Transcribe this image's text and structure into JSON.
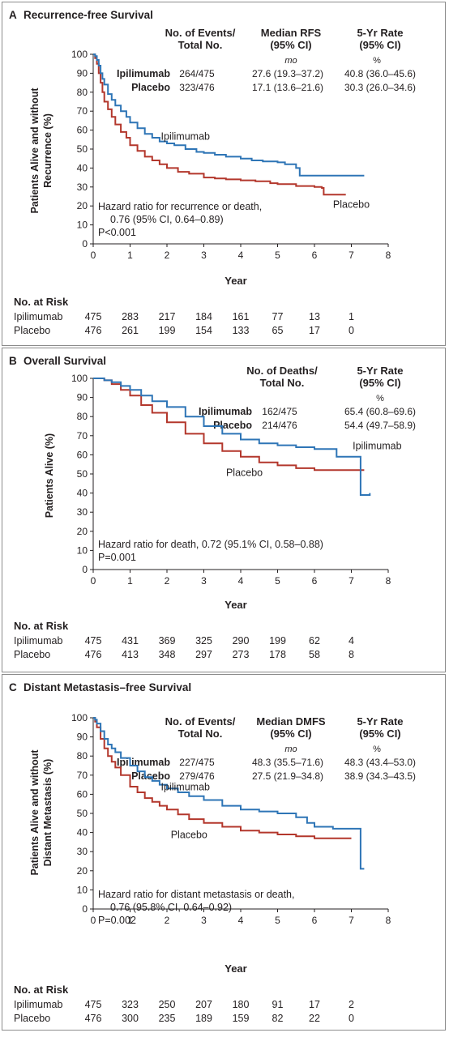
{
  "chart_data": [
    {
      "type": "line",
      "panel_letter": "A",
      "title": "Recurrence-free Survival",
      "ylabel": [
        "Patients Alive and without",
        "Recurrence (%)"
      ],
      "xlabel": "Year",
      "xlim": [
        0,
        8
      ],
      "ylim": [
        0,
        100
      ],
      "x_ticks": [
        "0",
        "1",
        "2",
        "3",
        "4",
        "5",
        "6",
        "7",
        "8"
      ],
      "y_ticks": [
        "0",
        "10",
        "20",
        "30",
        "40",
        "50",
        "60",
        "70",
        "80",
        "90",
        "100"
      ],
      "table_headers": [
        [
          "No. of Events/",
          "Total No."
        ],
        [
          "Median RFS",
          "(95% CI)"
        ],
        [
          "5-Yr Rate",
          "(95% CI)"
        ]
      ],
      "table_units": [
        "mo",
        "%"
      ],
      "table_rows": [
        {
          "group": "Ipilimumab",
          "events": "264/475",
          "median": "27.6 (19.3–37.2)",
          "rate": "40.8 (36.0–45.6)"
        },
        {
          "group": "Placebo",
          "events": "323/476",
          "median": "17.1 (13.6–21.6)",
          "rate": "30.3 (26.0–34.6)"
        }
      ],
      "curve_labels": [
        {
          "text": "Ipilimumab",
          "x": 2.5,
          "y": 55
        },
        {
          "text": "Placebo",
          "x": 7.0,
          "y": 19
        }
      ],
      "annotation": [
        "Hazard ratio for recurrence or death,",
        "0.76 (95% CI, 0.64–0.89)",
        "P<0.001"
      ],
      "series": [
        {
          "name": "Ipilimumab",
          "color": "#2e75b6",
          "x": [
            0,
            0.05,
            0.1,
            0.15,
            0.2,
            0.25,
            0.3,
            0.4,
            0.5,
            0.6,
            0.75,
            0.9,
            1.0,
            1.2,
            1.4,
            1.6,
            1.8,
            2.0,
            2.2,
            2.5,
            2.8,
            3.0,
            3.3,
            3.6,
            4.0,
            4.3,
            4.6,
            5.0,
            5.2,
            5.5,
            5.6,
            6.0,
            6.5,
            7.0,
            7.35
          ],
          "y": [
            100,
            99,
            97,
            94,
            90,
            87,
            84,
            79,
            76,
            73,
            70,
            67,
            64,
            61,
            58,
            56,
            54,
            53,
            52,
            50,
            48.5,
            48,
            47,
            46,
            45,
            44,
            43.5,
            43,
            42,
            40,
            36,
            36,
            36,
            36,
            36
          ]
        },
        {
          "name": "Placebo",
          "color": "#b3372c",
          "x": [
            0,
            0.05,
            0.1,
            0.15,
            0.2,
            0.25,
            0.3,
            0.4,
            0.5,
            0.6,
            0.75,
            0.9,
            1.0,
            1.2,
            1.4,
            1.6,
            1.8,
            2.0,
            2.3,
            2.6,
            3.0,
            3.3,
            3.6,
            4.0,
            4.4,
            4.8,
            5.0,
            5.5,
            6.0,
            6.2,
            6.25,
            6.6,
            6.85
          ],
          "y": [
            100,
            98,
            95,
            90,
            85,
            80,
            75,
            71,
            67,
            63,
            59,
            56,
            52,
            49,
            46,
            44,
            42,
            40,
            38,
            37,
            35,
            34.5,
            34,
            33.5,
            33,
            32,
            31.5,
            30.5,
            30,
            29.5,
            26,
            26,
            26
          ]
        }
      ],
      "risk_title": "No. at Risk",
      "risk_rows": [
        {
          "group": "Ipilimumab",
          "values": [
            "475",
            "283",
            "217",
            "184",
            "161",
            "77",
            "13",
            "1"
          ]
        },
        {
          "group": "Placebo",
          "values": [
            "476",
            "261",
            "199",
            "154",
            "133",
            "65",
            "17",
            "0"
          ]
        }
      ]
    },
    {
      "type": "line",
      "panel_letter": "B",
      "title": "Overall Survival",
      "ylabel": [
        "Patients Alive (%)"
      ],
      "xlabel": "Year",
      "xlim": [
        0,
        8
      ],
      "ylim": [
        0,
        100
      ],
      "x_ticks": [
        "0",
        "1",
        "2",
        "3",
        "4",
        "5",
        "6",
        "7",
        "8"
      ],
      "y_ticks": [
        "0",
        "10",
        "20",
        "30",
        "40",
        "50",
        "60",
        "70",
        "80",
        "90",
        "100"
      ],
      "table_headers": [
        [
          "No. of Deaths/",
          "Total No."
        ],
        [
          "5-Yr Rate",
          "(95% CI)"
        ]
      ],
      "table_units": [
        "%"
      ],
      "table_rows": [
        {
          "group": "Ipilimumab",
          "events": "162/475",
          "rate": "65.4 (60.8–69.6)"
        },
        {
          "group": "Placebo",
          "events": "214/476",
          "rate": "54.4 (49.7–58.9)"
        }
      ],
      "curve_labels": [
        {
          "text": "Ipilimumab",
          "x": 7.7,
          "y": 63
        },
        {
          "text": "Placebo",
          "x": 4.1,
          "y": 49
        }
      ],
      "annotation": [
        "Hazard ratio for death, 0.72 (95.1% CI, 0.58–0.88)",
        "P=0.001"
      ],
      "series": [
        {
          "name": "Ipilimumab",
          "color": "#2e75b6",
          "x": [
            0,
            0.3,
            0.5,
            0.75,
            1.0,
            1.3,
            1.6,
            2.0,
            2.5,
            3.0,
            3.5,
            4.0,
            4.5,
            5.0,
            5.5,
            6.0,
            6.5,
            6.6,
            7.0,
            7.2,
            7.25,
            7.5
          ],
          "y": [
            100,
            99,
            98,
            96,
            94,
            91,
            88,
            85,
            80,
            75,
            71,
            68,
            66,
            65,
            64,
            63,
            63,
            59,
            59,
            59,
            39,
            40
          ]
        },
        {
          "name": "Placebo",
          "color": "#b3372c",
          "x": [
            0,
            0.3,
            0.5,
            0.75,
            1.0,
            1.3,
            1.6,
            2.0,
            2.5,
            3.0,
            3.5,
            4.0,
            4.5,
            5.0,
            5.5,
            6.0,
            6.5,
            7.0,
            7.35
          ],
          "y": [
            100,
            99,
            97,
            94,
            91,
            86,
            82,
            77,
            71,
            66,
            62,
            59,
            56,
            54.5,
            53,
            52,
            52,
            52,
            52
          ]
        }
      ],
      "risk_title": "No. at Risk",
      "risk_rows": [
        {
          "group": "Ipilimumab",
          "values": [
            "475",
            "431",
            "369",
            "325",
            "290",
            "199",
            "62",
            "4"
          ]
        },
        {
          "group": "Placebo",
          "values": [
            "476",
            "413",
            "348",
            "297",
            "273",
            "178",
            "58",
            "8"
          ]
        }
      ]
    },
    {
      "type": "line",
      "panel_letter": "C",
      "title": "Distant Metastasis–free Survival",
      "ylabel": [
        "Patients Alive and without",
        "Distant Metastasis (%)"
      ],
      "xlabel": "Year",
      "xlim": [
        0,
        8
      ],
      "ylim": [
        0,
        100
      ],
      "x_ticks": [
        "0",
        "1",
        "2",
        "3",
        "4",
        "5",
        "6",
        "7",
        "8"
      ],
      "y_ticks": [
        "0",
        "10",
        "20",
        "30",
        "40",
        "50",
        "60",
        "70",
        "80",
        "90",
        "100"
      ],
      "table_headers": [
        [
          "No. of Events/",
          "Total No."
        ],
        [
          "Median DMFS",
          "(95% CI)"
        ],
        [
          "5-Yr Rate",
          "(95% CI)"
        ]
      ],
      "table_units": [
        "mo",
        "%"
      ],
      "table_rows": [
        {
          "group": "Ipilimumab",
          "events": "227/475",
          "median": "48.3 (35.5–71.6)",
          "rate": "48.3 (43.4–53.0)"
        },
        {
          "group": "Placebo",
          "events": "279/476",
          "median": "27.5 (21.9–34.8)",
          "rate": "38.9 (34.3–43.5)"
        }
      ],
      "curve_labels": [
        {
          "text": "Ipilimumab",
          "x": 2.5,
          "y": 62
        },
        {
          "text": "Placebo",
          "x": 2.6,
          "y": 37
        }
      ],
      "annotation": [
        "Hazard ratio for distant metastasis or death,",
        "0.76 (95.8% CI, 0.64–0.92)",
        "P=0.002"
      ],
      "series": [
        {
          "name": "Ipilimumab",
          "color": "#2e75b6",
          "x": [
            0,
            0.05,
            0.1,
            0.2,
            0.3,
            0.4,
            0.5,
            0.6,
            0.75,
            1.0,
            1.2,
            1.4,
            1.6,
            1.8,
            2.0,
            2.3,
            2.6,
            3.0,
            3.5,
            4.0,
            4.5,
            5.0,
            5.5,
            5.8,
            6.0,
            6.5,
            7.0,
            7.2,
            7.25,
            7.35
          ],
          "y": [
            100,
            99,
            97,
            93,
            89,
            86,
            84,
            82,
            79,
            75,
            72,
            69,
            67,
            65,
            63,
            61,
            59,
            57,
            54,
            52,
            51,
            50,
            48,
            45,
            43,
            42,
            42,
            42,
            21,
            21
          ]
        },
        {
          "name": "Placebo",
          "color": "#b3372c",
          "x": [
            0,
            0.05,
            0.1,
            0.2,
            0.3,
            0.4,
            0.5,
            0.6,
            0.75,
            1.0,
            1.2,
            1.4,
            1.6,
            1.8,
            2.0,
            2.3,
            2.6,
            3.0,
            3.5,
            4.0,
            4.5,
            5.0,
            5.5,
            6.0,
            6.5,
            7.0
          ],
          "y": [
            100,
            98,
            95,
            89,
            84,
            80,
            77,
            74,
            70,
            64,
            61,
            58,
            56,
            54,
            52,
            49.5,
            47,
            45,
            43,
            41,
            40,
            39,
            38,
            37,
            37,
            37
          ]
        }
      ],
      "risk_title": "No. at Risk",
      "risk_rows": [
        {
          "group": "Ipilimumab",
          "values": [
            "475",
            "323",
            "250",
            "207",
            "180",
            "91",
            "17",
            "2"
          ]
        },
        {
          "group": "Placebo",
          "values": [
            "476",
            "300",
            "235",
            "189",
            "159",
            "82",
            "22",
            "0"
          ]
        }
      ]
    }
  ]
}
